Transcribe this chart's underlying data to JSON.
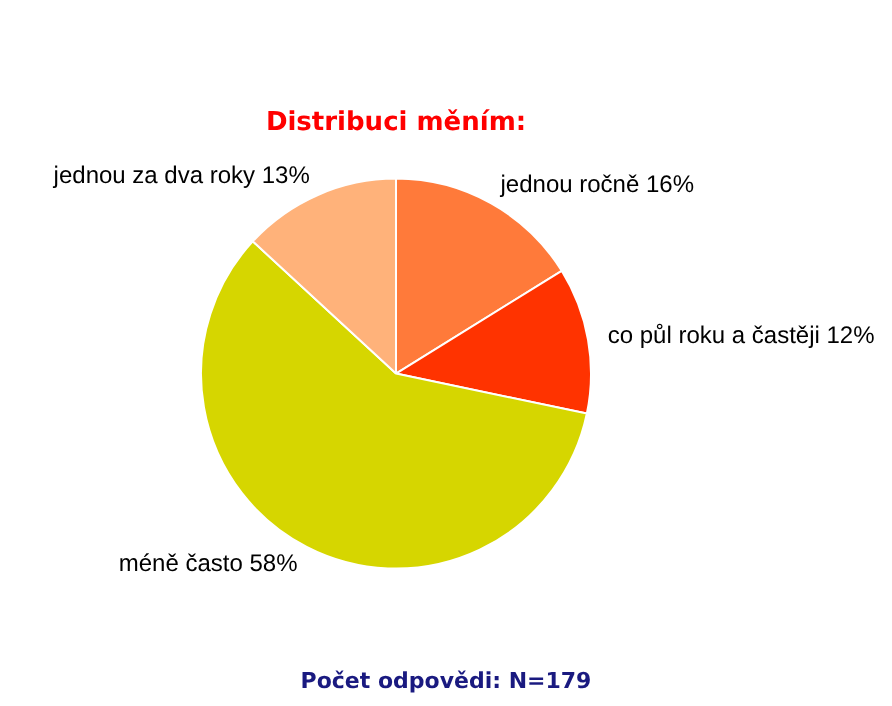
{
  "chart_data": {
    "type": "pie",
    "title": "Distribuci měním:",
    "categories": [
      "jednou ročně",
      "co půl roku a častěji",
      "méně často",
      "jednou za dva roky"
    ],
    "values": [
      16,
      12,
      58,
      13
    ],
    "value_labels": [
      "16%",
      "12%",
      "58%",
      "13%"
    ],
    "colors": [
      "#ff7a3a",
      "#ff3300",
      "#d6d600",
      "#ffb27a"
    ],
    "annotations": [
      "Počet odpovědi: N=179"
    ],
    "legend": false
  }
}
